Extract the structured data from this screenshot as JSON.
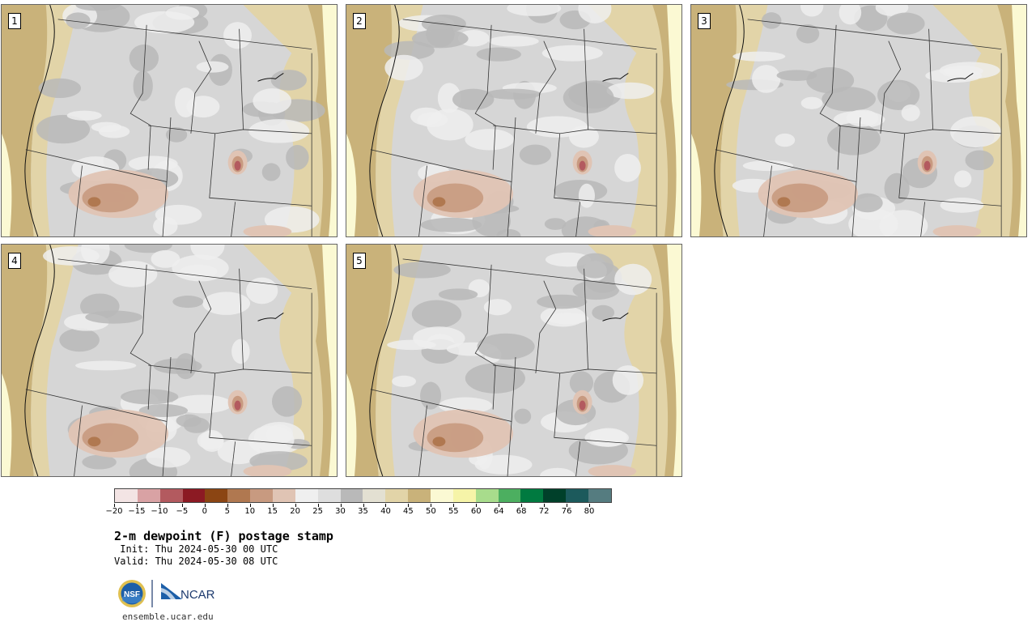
{
  "panels": [
    {
      "label": "1"
    },
    {
      "label": "2"
    },
    {
      "label": "3"
    },
    {
      "label": "4"
    },
    {
      "label": "5"
    }
  ],
  "colorbar": {
    "colors": [
      "#f3e4e4",
      "#d9a2a4",
      "#b35a5f",
      "#8c1a23",
      "#8b4513",
      "#b07850",
      "#c89a80",
      "#e0c4b4",
      "#efefef",
      "#dedede",
      "#b9b9b9",
      "#e3e0d2",
      "#e2d4a8",
      "#c9b27a",
      "#fbf9d3",
      "#f6f4a8",
      "#a8dc8c",
      "#4caf60",
      "#007a40",
      "#00402a",
      "#1c5a5c",
      "#557c80"
    ],
    "labels": [
      "−20",
      "−15",
      "−10",
      "−5",
      "0",
      "5",
      "10",
      "15",
      "20",
      "25",
      "30",
      "35",
      "40",
      "45",
      "50",
      "55",
      "60",
      "64",
      "68",
      "72",
      "76",
      "80"
    ]
  },
  "title": "2-m dewpoint (F) postage stamp",
  "init": " Init: Thu 2024-05-30 00 UTC",
  "valid": "Valid: Thu 2024-05-30 08 UTC",
  "logos": {
    "nsf": "NSF",
    "ncar": "NCAR"
  },
  "footer_url": "ensemble.ucar.edu"
}
